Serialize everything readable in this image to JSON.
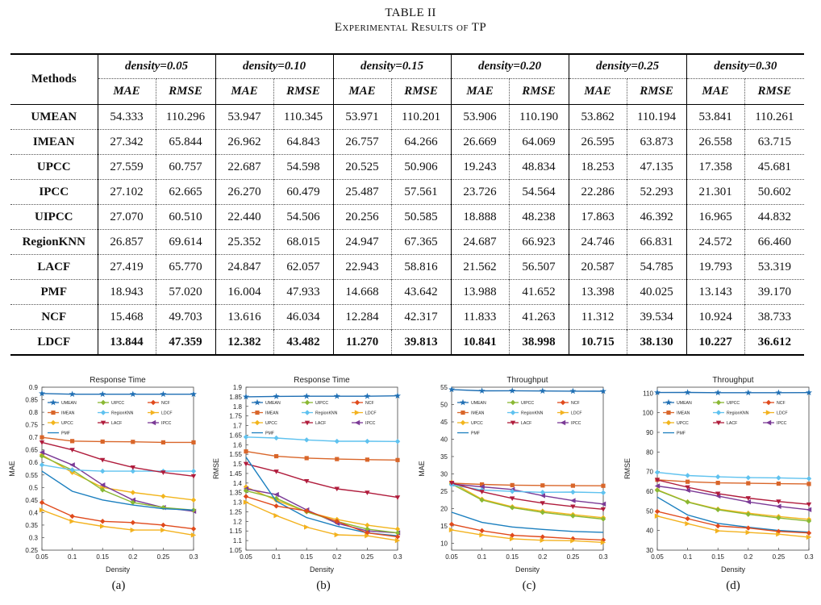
{
  "caption": {
    "line1": "TABLE II",
    "line2": "Experimental Results of TP"
  },
  "table": {
    "methods_header": "Methods",
    "densities": [
      "density=0.05",
      "density=0.10",
      "density=0.15",
      "density=0.20",
      "density=0.25",
      "density=0.30"
    ],
    "metrics": [
      "MAE",
      "RMSE"
    ],
    "rows": [
      {
        "method": "UMEAN",
        "values": [
          "54.333",
          "110.296",
          "53.947",
          "110.345",
          "53.971",
          "110.201",
          "53.906",
          "110.190",
          "53.862",
          "110.194",
          "53.841",
          "110.261"
        ]
      },
      {
        "method": "IMEAN",
        "values": [
          "27.342",
          "65.844",
          "26.962",
          "64.843",
          "26.757",
          "64.266",
          "26.669",
          "64.069",
          "26.595",
          "63.873",
          "26.558",
          "63.715"
        ]
      },
      {
        "method": "UPCC",
        "values": [
          "27.559",
          "60.757",
          "22.687",
          "54.598",
          "20.525",
          "50.906",
          "19.243",
          "48.834",
          "18.253",
          "47.135",
          "17.358",
          "45.681"
        ]
      },
      {
        "method": "IPCC",
        "values": [
          "27.102",
          "62.665",
          "26.270",
          "60.479",
          "25.487",
          "57.561",
          "23.726",
          "54.564",
          "22.286",
          "52.293",
          "21.301",
          "50.602"
        ]
      },
      {
        "method": "UIPCC",
        "values": [
          "27.070",
          "60.510",
          "22.440",
          "54.506",
          "20.256",
          "50.585",
          "18.888",
          "48.238",
          "17.863",
          "46.392",
          "16.965",
          "44.832"
        ]
      },
      {
        "method": "RegionKNN",
        "values": [
          "26.857",
          "69.614",
          "25.352",
          "68.015",
          "24.947",
          "67.365",
          "24.687",
          "66.923",
          "24.746",
          "66.831",
          "24.572",
          "66.460"
        ]
      },
      {
        "method": "LACF",
        "values": [
          "27.419",
          "65.770",
          "24.847",
          "62.057",
          "22.943",
          "58.816",
          "21.562",
          "56.507",
          "20.587",
          "54.785",
          "19.793",
          "53.319"
        ]
      },
      {
        "method": "PMF",
        "values": [
          "18.943",
          "57.020",
          "16.004",
          "47.933",
          "14.668",
          "43.642",
          "13.988",
          "41.652",
          "13.398",
          "40.025",
          "13.143",
          "39.170"
        ]
      },
      {
        "method": "NCF",
        "values": [
          "15.468",
          "49.703",
          "13.616",
          "46.034",
          "12.284",
          "42.317",
          "11.833",
          "41.263",
          "11.312",
          "39.534",
          "10.924",
          "38.733"
        ]
      },
      {
        "method": "LDCF",
        "values": [
          "13.844",
          "47.359",
          "12.382",
          "43.482",
          "11.270",
          "39.813",
          "10.841",
          "38.998",
          "10.715",
          "38.130",
          "10.227",
          "36.612"
        ]
      }
    ]
  },
  "legend_order": [
    "UMEAN",
    "UIPCC",
    "NCF",
    "IMEAN",
    "RegionKNN",
    "LDCF",
    "UPCC",
    "LACF",
    "IPCC",
    "PMF"
  ],
  "series_colors": {
    "UMEAN": "#1f6fb4",
    "UIPCC": "#8ab833",
    "NCF": "#e04a1c",
    "IMEAN": "#d9662a",
    "RegionKNN": "#5fc2ef",
    "LDCF": "#f3b21f",
    "UPCC": "#f2b51c",
    "LACF": "#b01c3c",
    "IPCC": "#7b3a96",
    "PMF": "#1b7fbf"
  },
  "series_markers": {
    "UMEAN": "star",
    "UIPCC": "diamond",
    "NCF": "diamond",
    "IMEAN": "square",
    "RegionKNN": "diamond",
    "LDCF": "triangle-right",
    "UPCC": "diamond",
    "LACF": "triangle-down",
    "IPCC": "triangle-left",
    "PMF": "none"
  },
  "chart_data": [
    {
      "id": "a",
      "type": "line",
      "title": "Response Time",
      "xlabel": "Density",
      "ylabel": "MAE",
      "sublabel": "(a)",
      "x": [
        0.05,
        0.1,
        0.15,
        0.2,
        0.25,
        0.3
      ],
      "x_ticks": [
        "0.05",
        "0.1",
        "0.15",
        "0.2",
        "0.25",
        "0.3"
      ],
      "ylim": [
        0.25,
        0.9
      ],
      "yticks": [
        "0.25",
        "0.3",
        "0.35",
        "0.4",
        "0.45",
        "0.5",
        "0.55",
        "0.6",
        "0.65",
        "0.7",
        "0.75",
        "0.8",
        "0.85",
        "0.9"
      ],
      "series": [
        {
          "name": "UMEAN",
          "values": [
            0.875,
            0.872,
            0.872,
            0.872,
            0.872,
            0.872
          ]
        },
        {
          "name": "IMEAN",
          "values": [
            0.7,
            0.685,
            0.683,
            0.682,
            0.68,
            0.68
          ]
        },
        {
          "name": "UPCC",
          "values": [
            0.63,
            0.56,
            0.5,
            0.48,
            0.465,
            0.45
          ]
        },
        {
          "name": "IPCC",
          "values": [
            0.64,
            0.59,
            0.51,
            0.45,
            0.42,
            0.405
          ]
        },
        {
          "name": "UIPCC",
          "values": [
            0.625,
            0.57,
            0.49,
            0.44,
            0.42,
            0.41
          ]
        },
        {
          "name": "RegionKNN",
          "values": [
            0.59,
            0.57,
            0.565,
            0.565,
            0.565,
            0.565
          ]
        },
        {
          "name": "LACF",
          "values": [
            0.68,
            0.65,
            0.61,
            0.58,
            0.56,
            0.545
          ]
        },
        {
          "name": "PMF",
          "values": [
            0.565,
            0.485,
            0.45,
            0.43,
            0.415,
            0.41
          ]
        },
        {
          "name": "NCF",
          "values": [
            0.44,
            0.385,
            0.365,
            0.36,
            0.35,
            0.335
          ]
        },
        {
          "name": "LDCF",
          "values": [
            0.41,
            0.365,
            0.345,
            0.33,
            0.33,
            0.31
          ]
        }
      ]
    },
    {
      "id": "b",
      "type": "line",
      "title": "Response Time",
      "xlabel": "Density",
      "ylabel": "RMSE",
      "sublabel": "(b)",
      "x": [
        0.05,
        0.1,
        0.15,
        0.2,
        0.25,
        0.3
      ],
      "x_ticks": [
        "0.05",
        "0.1",
        "0.15",
        "0.2",
        "0.25",
        "0.3"
      ],
      "ylim": [
        1.05,
        1.9
      ],
      "yticks": [
        "1.05",
        "1.1",
        "1.15",
        "1.2",
        "1.25",
        "1.3",
        "1.35",
        "1.4",
        "1.45",
        "1.5",
        "1.55",
        "1.6",
        "1.65",
        "1.7",
        "1.75",
        "1.8",
        "1.85",
        "1.9"
      ],
      "series": [
        {
          "name": "UMEAN",
          "values": [
            1.85,
            1.852,
            1.853,
            1.853,
            1.853,
            1.855
          ]
        },
        {
          "name": "IMEAN",
          "values": [
            1.565,
            1.54,
            1.53,
            1.525,
            1.522,
            1.52
          ]
        },
        {
          "name": "UPCC",
          "values": [
            1.38,
            1.31,
            1.25,
            1.21,
            1.18,
            1.16
          ]
        },
        {
          "name": "IPCC",
          "values": [
            1.37,
            1.34,
            1.26,
            1.19,
            1.15,
            1.14
          ]
        },
        {
          "name": "UIPCC",
          "values": [
            1.36,
            1.32,
            1.25,
            1.2,
            1.16,
            1.14
          ]
        },
        {
          "name": "RegionKNN",
          "values": [
            1.64,
            1.635,
            1.625,
            1.618,
            1.618,
            1.617
          ]
        },
        {
          "name": "LACF",
          "values": [
            1.5,
            1.46,
            1.41,
            1.37,
            1.35,
            1.325
          ]
        },
        {
          "name": "PMF",
          "values": [
            1.535,
            1.305,
            1.22,
            1.175,
            1.14,
            1.125
          ]
        },
        {
          "name": "NCF",
          "values": [
            1.33,
            1.28,
            1.255,
            1.2,
            1.14,
            1.12
          ]
        },
        {
          "name": "LDCF",
          "values": [
            1.3,
            1.23,
            1.17,
            1.13,
            1.125,
            1.1
          ]
        }
      ]
    },
    {
      "id": "c",
      "type": "line",
      "title": "Throughput",
      "xlabel": "Density",
      "ylabel": "MAE",
      "sublabel": "(c)",
      "x": [
        0.05,
        0.1,
        0.15,
        0.2,
        0.25,
        0.3
      ],
      "x_ticks": [
        "0.05",
        "0.1",
        "0.15",
        "0.2",
        "0.25",
        "0.3"
      ],
      "ylim": [
        8,
        55
      ],
      "yticks": [
        "10",
        "15",
        "20",
        "25",
        "30",
        "35",
        "40",
        "45",
        "50",
        "55"
      ],
      "series": [
        {
          "name": "UMEAN",
          "values": [
            54.333,
            53.947,
            53.971,
            53.906,
            53.862,
            53.841
          ]
        },
        {
          "name": "IMEAN",
          "values": [
            27.342,
            26.962,
            26.757,
            26.669,
            26.595,
            26.558
          ]
        },
        {
          "name": "UPCC",
          "values": [
            27.559,
            22.687,
            20.525,
            19.243,
            18.253,
            17.358
          ]
        },
        {
          "name": "IPCC",
          "values": [
            27.102,
            26.27,
            25.487,
            23.726,
            22.286,
            21.301
          ]
        },
        {
          "name": "UIPCC",
          "values": [
            27.07,
            22.44,
            20.256,
            18.888,
            17.863,
            16.965
          ]
        },
        {
          "name": "RegionKNN",
          "values": [
            26.857,
            25.352,
            24.947,
            24.687,
            24.746,
            24.572
          ]
        },
        {
          "name": "LACF",
          "values": [
            27.419,
            24.847,
            22.943,
            21.562,
            20.587,
            19.793
          ]
        },
        {
          "name": "PMF",
          "values": [
            18.943,
            16.004,
            14.668,
            13.988,
            13.398,
            13.143
          ]
        },
        {
          "name": "NCF",
          "values": [
            15.468,
            13.616,
            12.284,
            11.833,
            11.312,
            10.924
          ]
        },
        {
          "name": "LDCF",
          "values": [
            13.844,
            12.382,
            11.27,
            10.841,
            10.715,
            10.227
          ]
        }
      ]
    },
    {
      "id": "d",
      "type": "line",
      "title": "Throughput",
      "xlabel": "Density",
      "ylabel": "RMSE",
      "sublabel": "(d)",
      "x": [
        0.05,
        0.1,
        0.15,
        0.2,
        0.25,
        0.3
      ],
      "x_ticks": [
        "0.05",
        "0.1",
        "0.15",
        "0.2",
        "0.25",
        "0.3"
      ],
      "ylim": [
        30,
        113
      ],
      "yticks": [
        "30",
        "40",
        "50",
        "60",
        "70",
        "80",
        "90",
        "100",
        "110"
      ],
      "series": [
        {
          "name": "UMEAN",
          "values": [
            110.296,
            110.345,
            110.201,
            110.19,
            110.194,
            110.261
          ]
        },
        {
          "name": "IMEAN",
          "values": [
            65.844,
            64.843,
            64.266,
            64.069,
            63.873,
            63.715
          ]
        },
        {
          "name": "UPCC",
          "values": [
            60.757,
            54.598,
            50.906,
            48.834,
            47.135,
            45.681
          ]
        },
        {
          "name": "IPCC",
          "values": [
            62.665,
            60.479,
            57.561,
            54.564,
            52.293,
            50.602
          ]
        },
        {
          "name": "UIPCC",
          "values": [
            60.51,
            54.506,
            50.585,
            48.238,
            46.392,
            44.832
          ]
        },
        {
          "name": "RegionKNN",
          "values": [
            69.614,
            68.015,
            67.365,
            66.923,
            66.831,
            66.46
          ]
        },
        {
          "name": "LACF",
          "values": [
            65.77,
            62.057,
            58.816,
            56.507,
            54.785,
            53.319
          ]
        },
        {
          "name": "PMF",
          "values": [
            57.02,
            47.933,
            43.642,
            41.652,
            40.025,
            39.17
          ]
        },
        {
          "name": "NCF",
          "values": [
            49.703,
            46.034,
            42.317,
            41.263,
            39.534,
            38.733
          ]
        },
        {
          "name": "LDCF",
          "values": [
            47.359,
            43.482,
            39.813,
            38.998,
            38.13,
            36.612
          ]
        }
      ]
    }
  ]
}
